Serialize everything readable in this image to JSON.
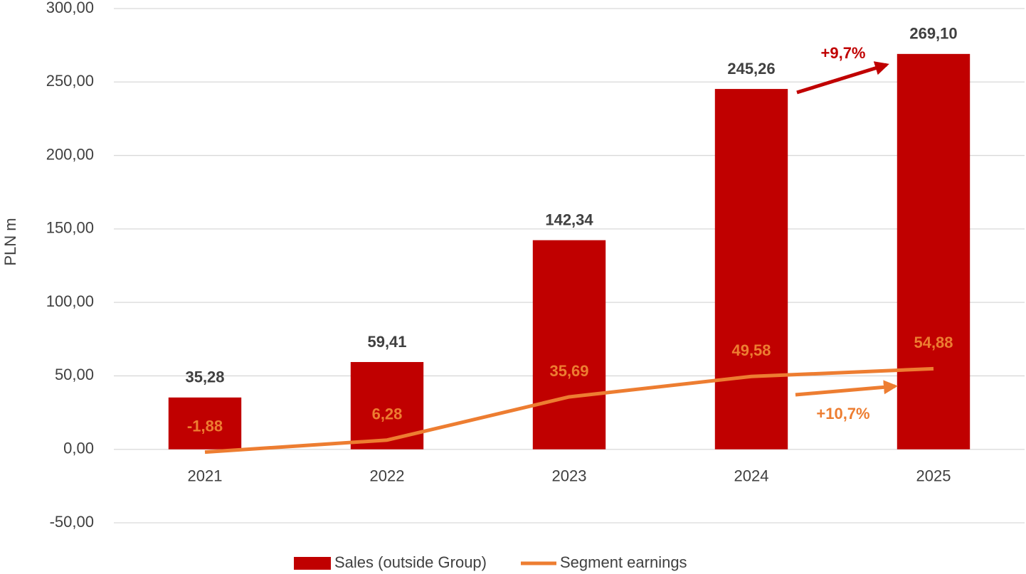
{
  "chart_data": {
    "type": "bar",
    "y_label": "PLN m",
    "categories": [
      "2021",
      "2022",
      "2023",
      "2024",
      "2025"
    ],
    "series": [
      {
        "name": "Sales (outside Group)",
        "type": "bar",
        "color": "#c00000",
        "values": [
          35.28,
          59.41,
          142.34,
          245.26,
          269.1
        ],
        "value_labels": [
          "35,28",
          "59,41",
          "142,34",
          "245,26",
          "269,10"
        ]
      },
      {
        "name": "Segment earnings",
        "type": "line",
        "color": "#ed7d31",
        "values": [
          -1.88,
          6.28,
          35.69,
          49.58,
          54.88
        ],
        "value_labels": [
          "-1,88",
          "6,28",
          "35,69",
          "49,58",
          "54,88"
        ]
      }
    ],
    "ylim": [
      -50,
      300
    ],
    "yticks": [
      {
        "value": -50,
        "label": "-50,00"
      },
      {
        "value": 0,
        "label": "0,00"
      },
      {
        "value": 50,
        "label": "50,00"
      },
      {
        "value": 100,
        "label": "100,00"
      },
      {
        "value": 150,
        "label": "150,00"
      },
      {
        "value": 200,
        "label": "200,00"
      },
      {
        "value": 250,
        "label": "250,00"
      },
      {
        "value": 300,
        "label": "300,00"
      }
    ],
    "grid": true,
    "legend": "bottom",
    "annotations": [
      "+9,7%",
      "+10,7%"
    ]
  }
}
